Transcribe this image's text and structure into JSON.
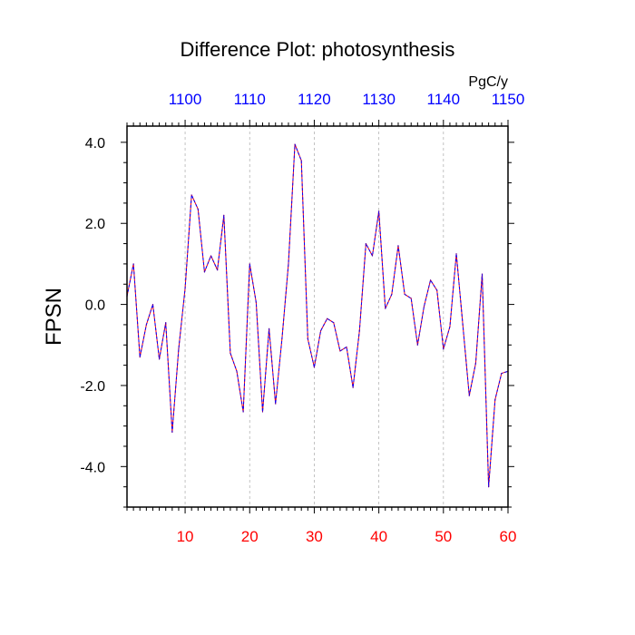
{
  "chart_data": {
    "type": "line",
    "title": "Difference Plot: photosynthesis",
    "units": "PgC/y",
    "ylabel": "FPSN",
    "xlabel": "",
    "xlim": [
      1,
      60
    ],
    "ylim": [
      -5,
      4.4
    ],
    "grid": "vertical-dashed",
    "x_bottom_ticks": [
      10,
      20,
      30,
      40,
      50,
      60
    ],
    "x_bottom_tick_labels": [
      "10",
      "20",
      "30",
      "40",
      "50",
      "60"
    ],
    "x_bottom_tick_color": "#ff0000",
    "x_top_ticks": [
      1100,
      1110,
      1120,
      1130,
      1140,
      1150
    ],
    "x_top_tick_labels": [
      "1100",
      "1110",
      "1120",
      "1130",
      "1140",
      "1150"
    ],
    "x_top_tick_color": "#0000ff",
    "x_top_offset": 1090,
    "y_ticks": [
      -4.0,
      -2.0,
      0.0,
      2.0,
      4.0
    ],
    "y_tick_labels": [
      "-4.0",
      "-2.0",
      "0.0",
      "2.0",
      "4.0"
    ],
    "line_colors": [
      "#ff0000",
      "#0000ff"
    ],
    "x": [
      1,
      2,
      3,
      4,
      5,
      6,
      7,
      8,
      9,
      10,
      11,
      12,
      13,
      14,
      15,
      16,
      17,
      18,
      19,
      20,
      21,
      22,
      23,
      24,
      25,
      26,
      27,
      28,
      29,
      30,
      31,
      32,
      33,
      34,
      35,
      36,
      37,
      38,
      39,
      40,
      41,
      42,
      43,
      44,
      45,
      46,
      47,
      48,
      49,
      50,
      51,
      52,
      53,
      54,
      55,
      56,
      57,
      58,
      59,
      60
    ],
    "series": [
      {
        "values": [
          0.2,
          1.0,
          -1.3,
          -0.5,
          0.0,
          -1.35,
          -0.45,
          -3.15,
          -1.1,
          0.4,
          2.7,
          2.35,
          0.8,
          1.2,
          0.85,
          2.2,
          -1.2,
          -1.65,
          -2.65,
          1.0,
          0.05,
          -2.65,
          -0.6,
          -2.45,
          -0.85,
          1.0,
          3.95,
          3.55,
          -0.85,
          -1.55,
          -0.65,
          -0.35,
          -0.45,
          -1.15,
          -1.05,
          -2.05,
          -0.65,
          1.5,
          1.2,
          2.3,
          -0.1,
          0.25,
          1.45,
          0.25,
          0.15,
          -1.0,
          -0.05,
          0.6,
          0.35,
          -1.1,
          -0.55,
          1.25,
          -0.5,
          -2.25,
          -1.45,
          0.75,
          -4.5,
          -2.35,
          -1.7,
          -1.65
        ]
      }
    ]
  }
}
